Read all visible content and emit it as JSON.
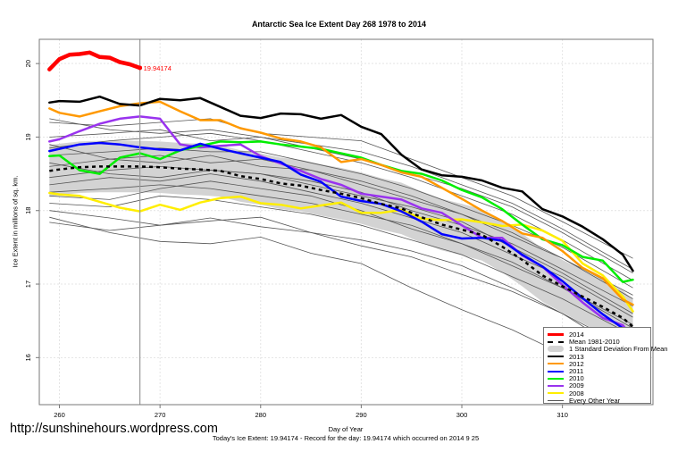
{
  "chart_data": {
    "type": "line",
    "title": "Antarctic Sea Ice Extent Day 268 1978 to 2014",
    "xlabel": "Day of Year",
    "ylabel": "Ice Extent in millions of sq. km.",
    "xlim": [
      258,
      319
    ],
    "ylim": [
      15.36,
      20.33
    ],
    "x_ticks": [
      260,
      270,
      280,
      290,
      300,
      310
    ],
    "y_ticks": [
      16,
      17,
      18,
      19,
      20
    ],
    "grid": true,
    "legend_position": "bottom-right",
    "marker_day": 268,
    "annotation": {
      "day": 268,
      "value": 19.94174,
      "label": "19.94174",
      "color": "#ff0000"
    },
    "footer": "Today's Ice Extent: 19.94174  - Record for the day: 19.94174 which occurred on 2014 9 25",
    "watermark": "http://sunshinehours.wordpress.com",
    "x": [
      259,
      260,
      262,
      264,
      266,
      268,
      270,
      272,
      274,
      276,
      278,
      280,
      282,
      284,
      286,
      288,
      290,
      292,
      294,
      296,
      298,
      300,
      302,
      304,
      306,
      308,
      310,
      312,
      314,
      316,
      317
    ],
    "series": [
      {
        "name": "2014",
        "color": "#ff0000",
        "width": 4.5,
        "x": [
          259,
          260,
          261,
          262,
          263,
          264,
          265,
          266,
          267,
          268
        ],
        "values": [
          19.92,
          20.06,
          20.12,
          20.13,
          20.15,
          20.09,
          20.08,
          20.02,
          19.99,
          19.94174
        ]
      },
      {
        "name": "Mean 1981-2010",
        "color": "#000000",
        "dashed": true,
        "width": 2.5,
        "values": [
          18.54,
          18.56,
          18.59,
          18.6,
          18.6,
          18.6,
          18.59,
          18.57,
          18.56,
          18.54,
          18.47,
          18.43,
          18.37,
          18.34,
          18.28,
          18.23,
          18.17,
          18.09,
          18.03,
          17.91,
          17.81,
          17.74,
          17.67,
          17.51,
          17.33,
          17.12,
          16.97,
          16.83,
          16.69,
          16.54,
          16.42
        ]
      },
      {
        "name": "2013",
        "color": "#000000",
        "width": 2.5,
        "values": [
          19.47,
          19.49,
          19.48,
          19.55,
          19.45,
          19.43,
          19.52,
          19.5,
          19.53,
          19.41,
          19.29,
          19.26,
          19.32,
          19.31,
          19.25,
          19.3,
          19.14,
          19.04,
          18.76,
          18.56,
          18.48,
          18.46,
          18.41,
          18.31,
          18.26,
          18.02,
          17.92,
          17.78,
          17.61,
          17.4,
          17.18
        ]
      },
      {
        "name": "2012",
        "color": "#ff9900",
        "width": 2.5,
        "values": [
          19.39,
          19.33,
          19.28,
          19.35,
          19.42,
          19.46,
          19.48,
          19.35,
          19.23,
          19.23,
          19.12,
          19.06,
          18.98,
          18.94,
          18.86,
          18.66,
          18.7,
          18.62,
          18.52,
          18.46,
          18.31,
          18.16,
          18.0,
          17.86,
          17.69,
          17.63,
          17.45,
          17.22,
          17.08,
          16.79,
          16.72
        ]
      },
      {
        "name": "2011",
        "color": "#0000ff",
        "width": 2.5,
        "values": [
          18.81,
          18.84,
          18.9,
          18.92,
          18.9,
          18.86,
          18.83,
          18.82,
          18.91,
          18.84,
          18.78,
          18.72,
          18.66,
          18.49,
          18.39,
          18.19,
          18.13,
          18.09,
          17.99,
          17.85,
          17.68,
          17.62,
          17.63,
          17.59,
          17.4,
          17.24,
          17.04,
          16.81,
          16.59,
          16.4,
          16.16
        ]
      },
      {
        "name": "2010",
        "color": "#00ee00",
        "width": 2.5,
        "values": [
          18.74,
          18.75,
          18.55,
          18.5,
          18.72,
          18.78,
          18.7,
          18.82,
          18.88,
          18.94,
          18.93,
          18.94,
          18.9,
          18.87,
          18.84,
          18.78,
          18.72,
          18.62,
          18.54,
          18.5,
          18.41,
          18.28,
          18.18,
          18.02,
          17.81,
          17.61,
          17.53,
          17.37,
          17.32,
          17.03,
          17.06
        ]
      },
      {
        "name": "2009",
        "color": "#9933ee",
        "width": 2.5,
        "values": [
          18.94,
          18.97,
          19.08,
          19.18,
          19.25,
          19.28,
          19.25,
          18.9,
          18.86,
          18.88,
          18.9,
          18.74,
          18.64,
          18.54,
          18.43,
          18.35,
          18.23,
          18.19,
          18.15,
          18.03,
          17.97,
          17.8,
          17.63,
          17.63,
          17.39,
          17.24,
          16.99,
          16.75,
          16.54,
          16.44,
          16.28
        ]
      },
      {
        "name": "2008",
        "color": "#ffee00",
        "width": 2.5,
        "values": [
          18.24,
          18.22,
          18.2,
          18.12,
          18.04,
          17.99,
          18.08,
          18.01,
          18.11,
          18.17,
          18.19,
          18.1,
          18.08,
          18.03,
          18.07,
          18.11,
          17.97,
          17.97,
          18.01,
          17.89,
          17.87,
          17.88,
          17.84,
          17.79,
          17.81,
          17.73,
          17.59,
          17.28,
          17.12,
          16.83,
          16.63
        ]
      }
    ],
    "sd_band": {
      "name": "1 Standard Deviation From Mean",
      "color": "#d3d3d3",
      "sd": [
        0.35,
        0.35,
        0.35,
        0.35,
        0.35,
        0.35,
        0.35,
        0.35,
        0.35,
        0.35,
        0.35,
        0.35,
        0.35,
        0.35,
        0.35,
        0.35,
        0.35,
        0.35,
        0.35,
        0.35,
        0.35,
        0.35,
        0.35,
        0.35,
        0.36,
        0.36,
        0.36,
        0.36,
        0.37,
        0.37,
        0.37
      ]
    },
    "other_years": {
      "name": "Every Other Year",
      "color": "#555555",
      "x": [
        259,
        265,
        270,
        275,
        280,
        285,
        290,
        295,
        300,
        305,
        310,
        317
      ],
      "lines": [
        [
          17.91,
          17.7,
          17.58,
          17.55,
          17.64,
          17.42,
          17.28,
          16.95,
          16.65,
          16.38,
          16.05,
          15.54
        ],
        [
          17.84,
          17.73,
          17.8,
          17.86,
          17.91,
          17.7,
          17.52,
          17.37,
          17.13,
          16.9,
          16.6,
          16.0
        ],
        [
          18.0,
          17.9,
          17.8,
          17.9,
          17.78,
          17.7,
          17.6,
          17.45,
          17.25,
          16.95,
          16.6,
          16.1
        ],
        [
          18.1,
          18.05,
          18.2,
          18.15,
          18.05,
          17.95,
          17.8,
          17.6,
          17.4,
          17.1,
          16.8,
          16.3
        ],
        [
          18.25,
          18.3,
          18.35,
          18.3,
          18.2,
          18.1,
          17.95,
          17.8,
          17.55,
          17.3,
          16.95,
          16.45
        ],
        [
          18.35,
          18.45,
          18.4,
          18.5,
          18.4,
          18.25,
          18.1,
          17.9,
          17.7,
          17.4,
          17.1,
          16.55
        ],
        [
          18.45,
          18.55,
          18.6,
          18.55,
          18.5,
          18.4,
          18.25,
          18.0,
          17.8,
          17.55,
          17.2,
          16.7
        ],
        [
          18.6,
          18.7,
          18.65,
          18.75,
          18.6,
          18.55,
          18.35,
          18.15,
          17.95,
          17.7,
          17.35,
          16.85
        ],
        [
          18.75,
          18.8,
          18.85,
          18.8,
          18.8,
          18.65,
          18.5,
          18.3,
          18.05,
          17.8,
          17.5,
          16.95
        ],
        [
          18.85,
          18.95,
          19.0,
          19.05,
          18.95,
          18.8,
          18.65,
          18.45,
          18.2,
          17.95,
          17.6,
          17.05
        ],
        [
          19.0,
          19.05,
          19.1,
          18.95,
          19.0,
          18.9,
          18.8,
          18.6,
          18.35,
          18.1,
          17.75,
          17.2
        ],
        [
          19.2,
          19.15,
          19.2,
          19.25,
          19.05,
          19.0,
          18.95,
          18.7,
          18.45,
          18.2,
          17.85,
          17.35
        ],
        [
          19.25,
          19.1,
          19.05,
          19.1,
          19.0,
          18.85,
          18.7,
          18.5,
          18.3,
          18.05,
          17.7,
          17.15
        ],
        [
          18.2,
          18.15,
          18.3,
          18.4,
          18.3,
          18.2,
          18.0,
          17.75,
          17.55,
          17.25,
          16.95,
          16.4
        ],
        [
          18.65,
          18.5,
          18.45,
          18.55,
          18.5,
          18.35,
          18.2,
          18.05,
          17.85,
          17.5,
          17.15,
          16.6
        ],
        [
          18.9,
          18.7,
          18.75,
          18.65,
          18.7,
          18.55,
          18.4,
          18.2,
          17.95,
          17.65,
          17.35,
          16.8
        ]
      ]
    },
    "legend": [
      {
        "label": "2014",
        "color": "#ff0000",
        "kind": "thick"
      },
      {
        "label": "Mean 1981-2010",
        "color": "#000000",
        "kind": "dashed"
      },
      {
        "label": "1 Standard Deviation From Mean",
        "color": "#d3d3d3",
        "kind": "band"
      },
      {
        "label": "2013",
        "color": "#000000",
        "kind": "line"
      },
      {
        "label": "2012",
        "color": "#ff9900",
        "kind": "line"
      },
      {
        "label": "2011",
        "color": "#0000ff",
        "kind": "line"
      },
      {
        "label": "2010",
        "color": "#00ee00",
        "kind": "line"
      },
      {
        "label": "2009",
        "color": "#9933ee",
        "kind": "line"
      },
      {
        "label": "2008",
        "color": "#ffee00",
        "kind": "line"
      },
      {
        "label": "Every Other Year",
        "color": "#555555",
        "kind": "thin"
      }
    ]
  }
}
